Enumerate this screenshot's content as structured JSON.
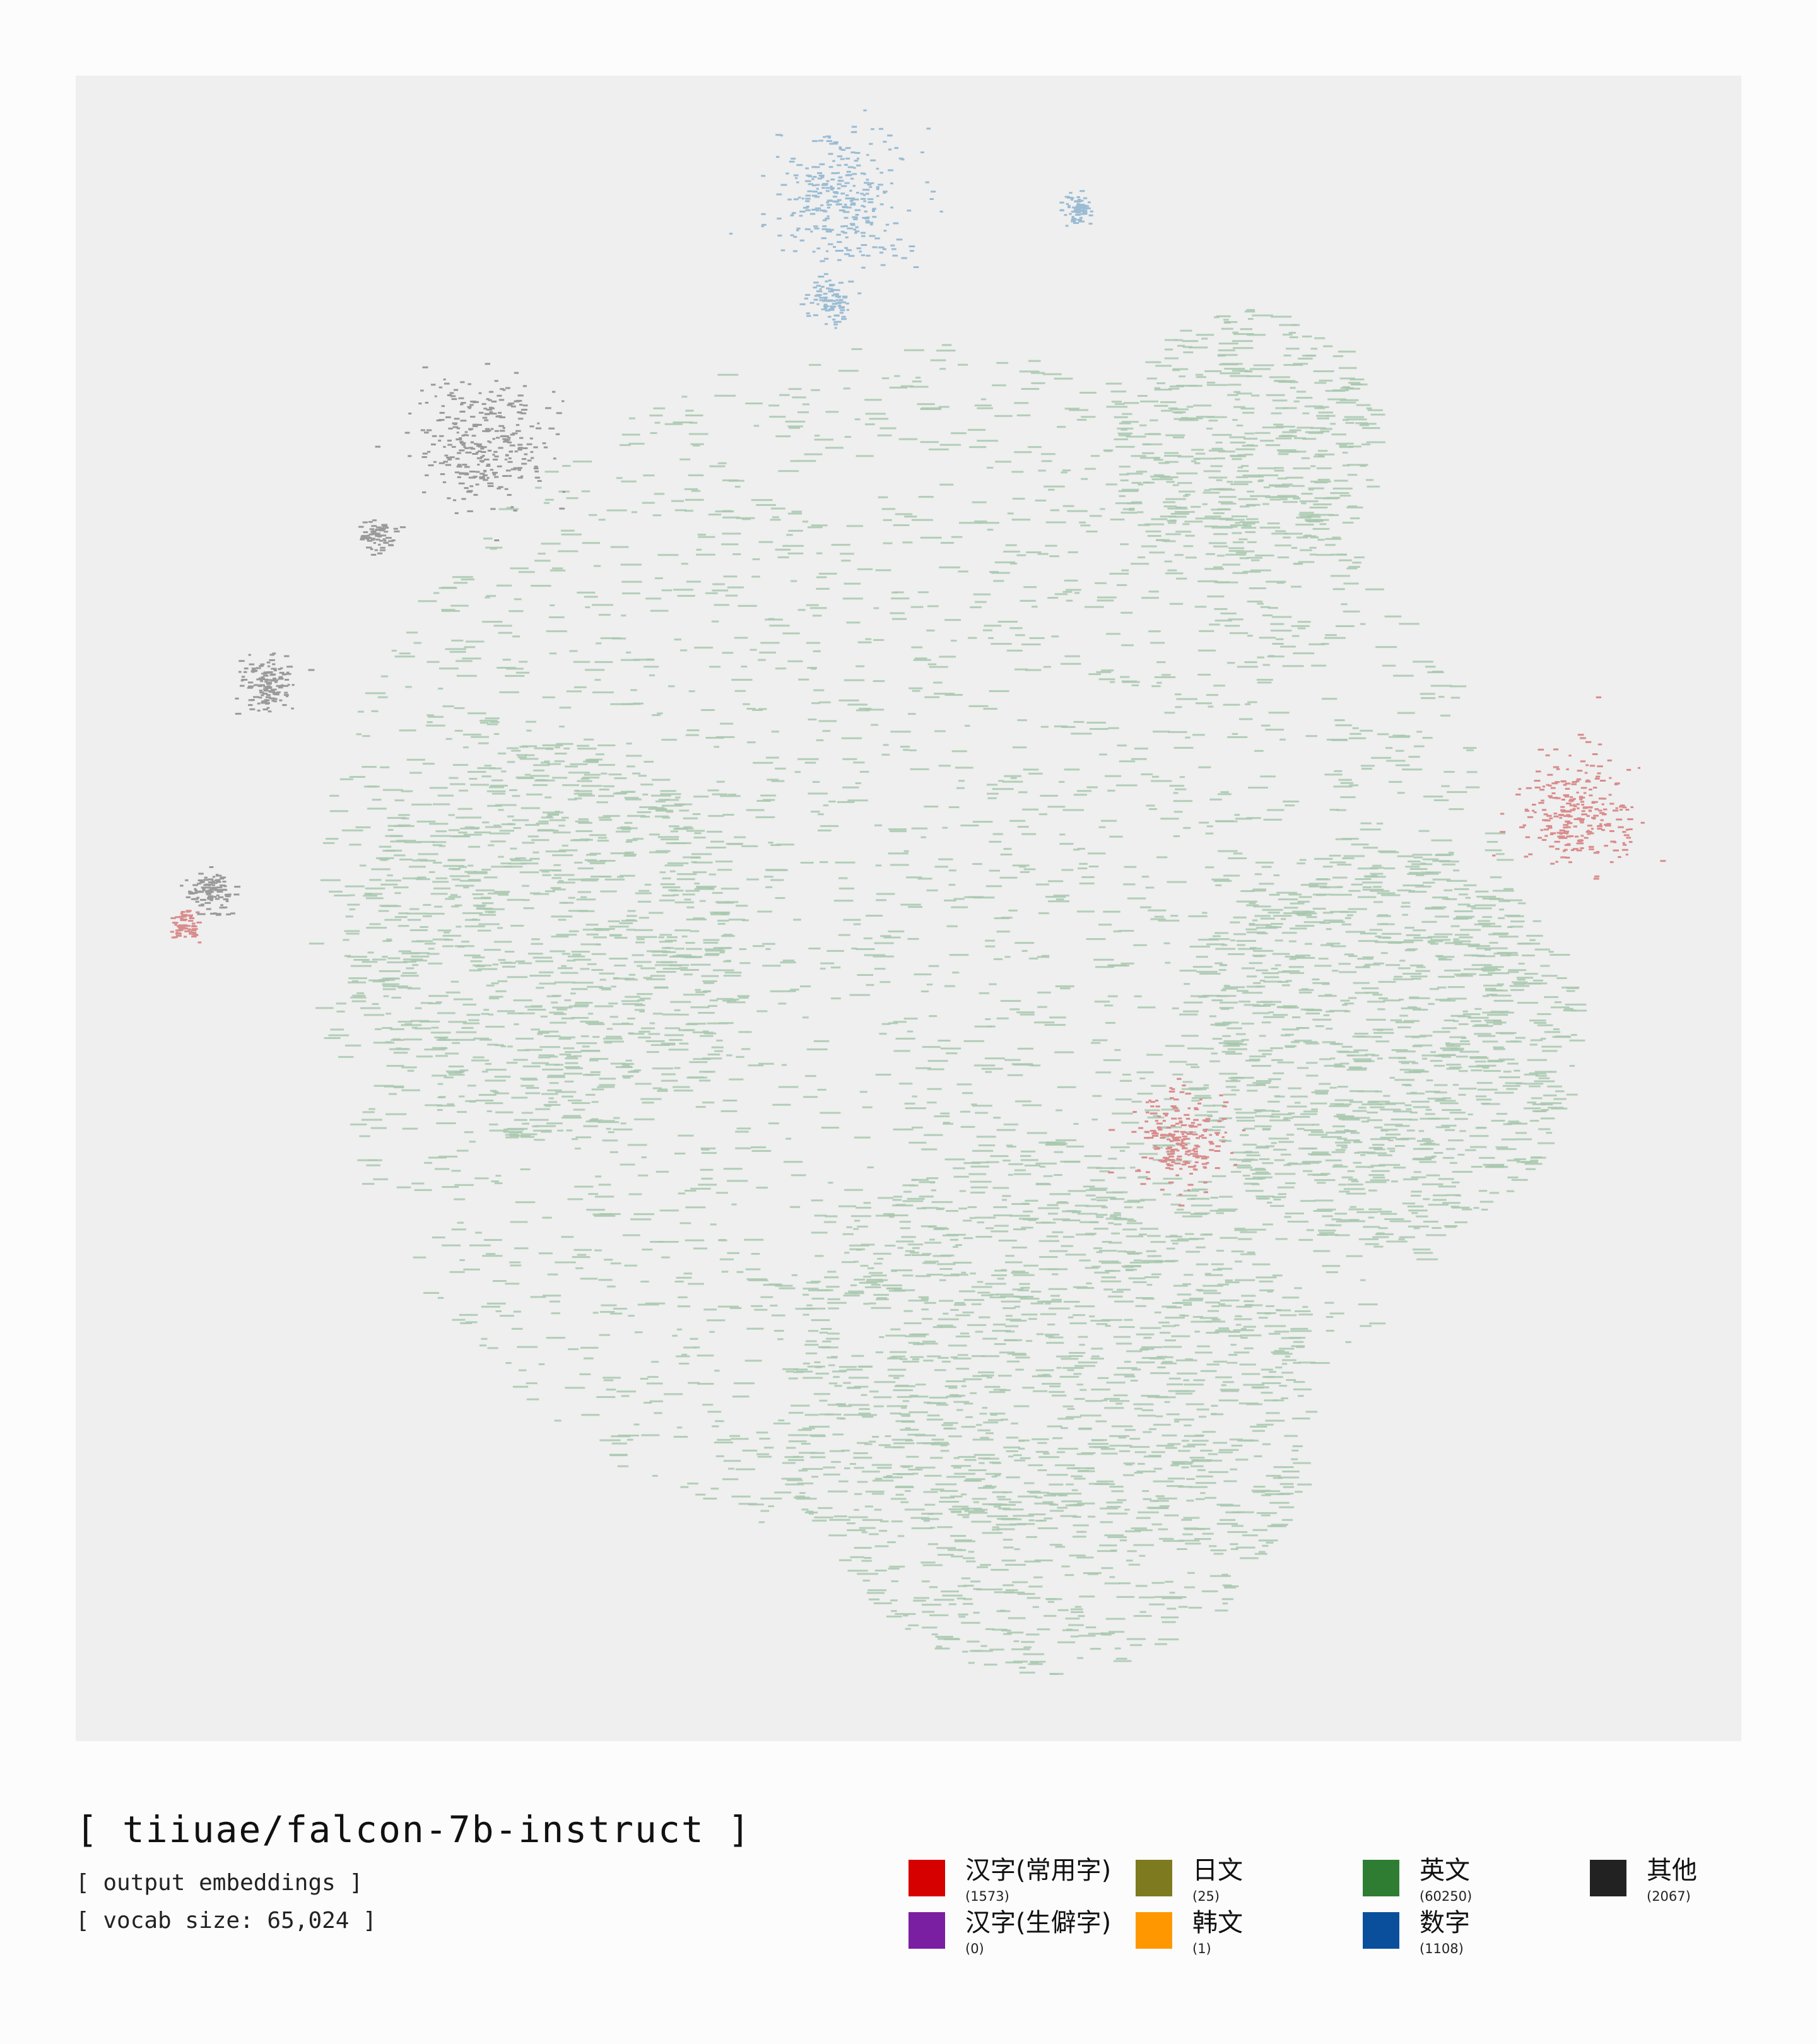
{
  "chart_data": {
    "type": "scatter",
    "title": "[ tiiuae/falcon-7b-instruct ]",
    "subtitle_lines": [
      "[ output embeddings ]",
      "[ vocab size: 65,024 ]"
    ],
    "xlabel": "",
    "ylabel": "",
    "axes_visible": false,
    "grid": false,
    "legend_position": "bottom-right",
    "series": [
      {
        "key": "common_hanzi",
        "name": "汉字(常用字)",
        "count_label": "(1573)",
        "count": 1573,
        "color": "#d60000"
      },
      {
        "key": "rare_hanzi",
        "name": "汉字(生僻字)",
        "count_label": "(0)",
        "count": 0,
        "color": "#7a1fa2"
      },
      {
        "key": "japanese",
        "name": "日文",
        "count_label": "(25)",
        "count": 25,
        "color": "#7d7a1f"
      },
      {
        "key": "korean",
        "name": "韩文",
        "count_label": "(1)",
        "count": 1,
        "color": "#ff9800"
      },
      {
        "key": "english",
        "name": "英文",
        "count_label": "(60250)",
        "count": 60250,
        "color": "#2e7d32"
      },
      {
        "key": "digits",
        "name": "数字",
        "count_label": "(1108)",
        "count": 1108,
        "color": "#0a4f9c"
      },
      {
        "key": "other",
        "name": "其他",
        "count_label": "(2067)",
        "count": 2067,
        "color": "#222222"
      }
    ],
    "clusters": [
      {
        "series": "english",
        "cx": 0.5,
        "cy": 0.52,
        "spread": 0.36,
        "density": 1.0
      },
      {
        "series": "english",
        "cx": 0.78,
        "cy": 0.58,
        "spread": 0.12,
        "density": 1.0
      },
      {
        "series": "english",
        "cx": 0.58,
        "cy": 0.8,
        "spread": 0.16,
        "density": 1.0
      },
      {
        "series": "english",
        "cx": 0.28,
        "cy": 0.52,
        "spread": 0.12,
        "density": 0.8
      },
      {
        "series": "english",
        "cx": 0.7,
        "cy": 0.22,
        "spread": 0.08,
        "density": 0.7
      },
      {
        "series": "common_hanzi",
        "cx": 0.9,
        "cy": 0.44,
        "spread": 0.03,
        "density": 1.0
      },
      {
        "series": "common_hanzi",
        "cx": 0.66,
        "cy": 0.64,
        "spread": 0.025,
        "density": 1.0
      },
      {
        "series": "common_hanzi",
        "cx": 0.065,
        "cy": 0.51,
        "spread": 0.008,
        "density": 1.0
      },
      {
        "series": "digits",
        "cx": 0.46,
        "cy": 0.075,
        "spread": 0.035,
        "density": 1.0
      },
      {
        "series": "digits",
        "cx": 0.45,
        "cy": 0.135,
        "spread": 0.01,
        "density": 1.0
      },
      {
        "series": "digits",
        "cx": 0.6,
        "cy": 0.08,
        "spread": 0.008,
        "density": 1.0
      },
      {
        "series": "other",
        "cx": 0.245,
        "cy": 0.22,
        "spread": 0.035,
        "density": 1.0
      },
      {
        "series": "other",
        "cx": 0.115,
        "cy": 0.365,
        "spread": 0.015,
        "density": 1.0
      },
      {
        "series": "other",
        "cx": 0.08,
        "cy": 0.49,
        "spread": 0.012,
        "density": 1.0
      },
      {
        "series": "other",
        "cx": 0.18,
        "cy": 0.275,
        "spread": 0.008,
        "density": 1.0
      }
    ]
  },
  "legend": {
    "items": [
      {
        "label": "汉字(常用字)",
        "count": "(1573)",
        "color": "#d60000"
      },
      {
        "label": "汉字(生僻字)",
        "count": "(0)",
        "color": "#7a1fa2"
      },
      {
        "label": "日文",
        "count": "(25)",
        "color": "#7d7a1f"
      },
      {
        "label": "韩文",
        "count": "(1)",
        "color": "#ff9800"
      },
      {
        "label": "英文",
        "count": "(60250)",
        "color": "#2e7d32"
      },
      {
        "label": "数字",
        "count": "(1108)",
        "color": "#0a4f9c"
      },
      {
        "label": "其他",
        "count": "(2067)",
        "color": "#222222"
      }
    ]
  },
  "colors": {
    "plot_background": "#efefef",
    "page_background": "#fcfcfc",
    "english_mark": "#a8c8ae",
    "common_hanzi_mark": "#d98c8c",
    "digits_mark": "#9bbcd3",
    "other_mark": "#9a9a9a"
  }
}
